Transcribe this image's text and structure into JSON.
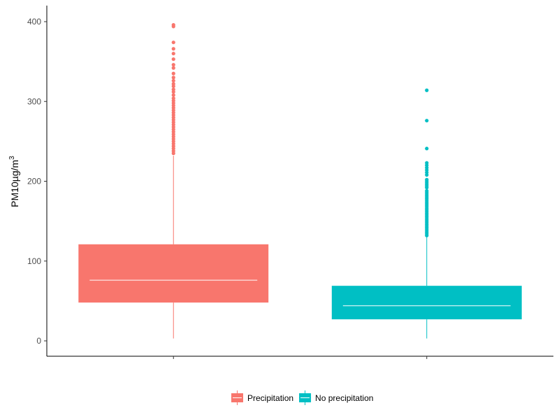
{
  "chart_data": {
    "type": "boxplot",
    "title": "",
    "xlabel": "",
    "ylabel": {
      "text": "PM10µg/m",
      "superscript": "3"
    },
    "ylim": [
      -20,
      420
    ],
    "yticks": [
      0,
      100,
      200,
      300,
      400
    ],
    "grid": false,
    "legend_position": "bottom",
    "series": [
      {
        "name": "Precipitation",
        "color": "#F8766D",
        "whisker_low": 3,
        "q1": 48,
        "median": 76,
        "q3": 121,
        "whisker_high": 232,
        "outliers": [
          235,
          238,
          241,
          244,
          247,
          250,
          253,
          256,
          259,
          262,
          265,
          268,
          271,
          274,
          277,
          280,
          283,
          286,
          289,
          292,
          295,
          298,
          301,
          304,
          308,
          312,
          315,
          319,
          322,
          326,
          330,
          335,
          342,
          346,
          353,
          360,
          366,
          374,
          394,
          396
        ]
      },
      {
        "name": "No precipitation",
        "color": "#00BFC4",
        "whisker_low": 3,
        "q1": 27,
        "median": 44,
        "q3": 69,
        "whisker_high": 130,
        "outliers": [
          132,
          134,
          136,
          138,
          140,
          142,
          144,
          146,
          148,
          150,
          152,
          154,
          156,
          158,
          160,
          162,
          164,
          166,
          168,
          170,
          172,
          174,
          176,
          178,
          180,
          182,
          184,
          186,
          188,
          192,
          194,
          196,
          198,
          200,
          202,
          208,
          211,
          214,
          217,
          220,
          223,
          241,
          276,
          314
        ]
      }
    ]
  }
}
